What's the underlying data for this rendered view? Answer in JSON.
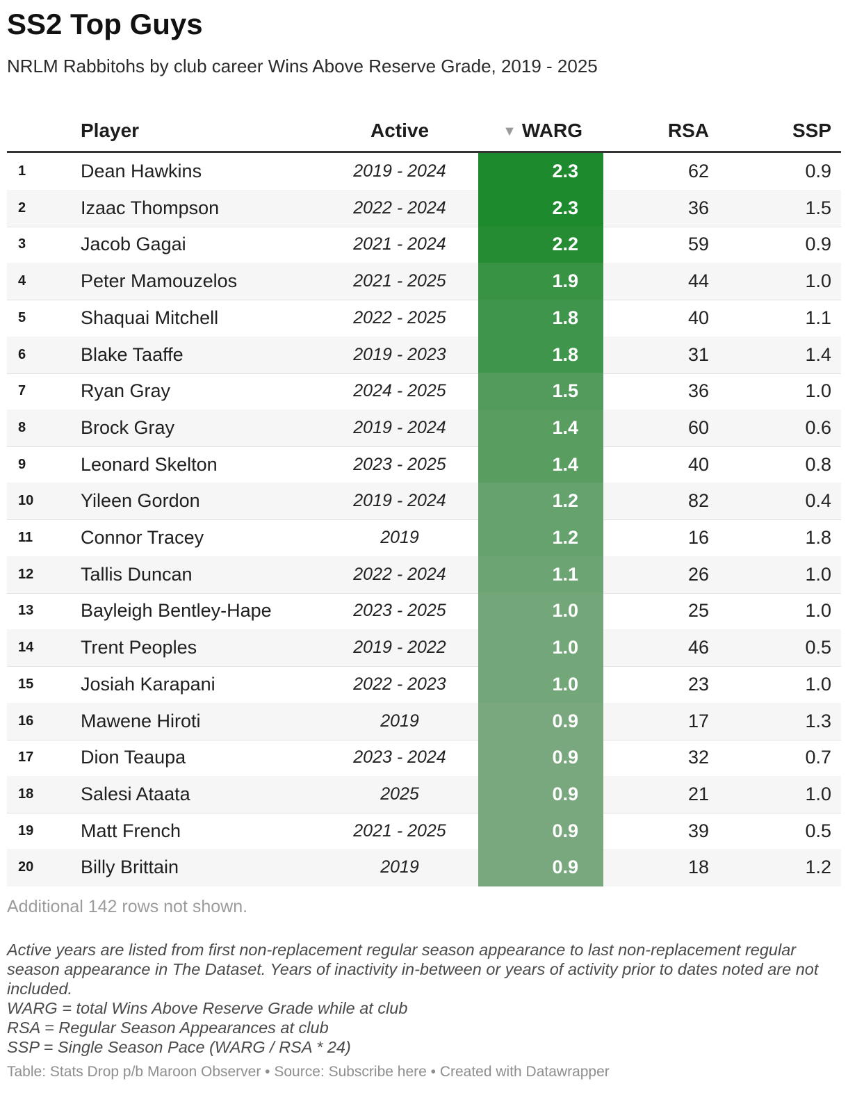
{
  "title": "SS2 Top Guys",
  "subtitle": "NRLM Rabbitohs by club career Wins Above Reserve Grade, 2019 - 2025",
  "colors": {
    "warg_high": "#1e8a2e",
    "warg_low": "#7aa87e",
    "row_alt": "#f6f6f6"
  },
  "chart_data": {
    "type": "table",
    "columns": [
      "",
      "Player",
      "Active",
      "WARG",
      "RSA",
      "SSP"
    ],
    "sort_indicator": "▼",
    "sorted_column": "WARG",
    "rows": [
      {
        "rank": "1",
        "player": "Dean Hawkins",
        "active": "2019 - 2024",
        "warg": "2.3",
        "rsa": "62",
        "ssp": "0.9"
      },
      {
        "rank": "2",
        "player": "Izaac Thompson",
        "active": "2022 - 2024",
        "warg": "2.3",
        "rsa": "36",
        "ssp": "1.5"
      },
      {
        "rank": "3",
        "player": "Jacob Gagai",
        "active": "2021 - 2024",
        "warg": "2.2",
        "rsa": "59",
        "ssp": "0.9"
      },
      {
        "rank": "4",
        "player": "Peter Mamouzelos",
        "active": "2021 - 2025",
        "warg": "1.9",
        "rsa": "44",
        "ssp": "1.0"
      },
      {
        "rank": "5",
        "player": "Shaquai Mitchell",
        "active": "2022 - 2025",
        "warg": "1.8",
        "rsa": "40",
        "ssp": "1.1"
      },
      {
        "rank": "6",
        "player": "Blake Taaffe",
        "active": "2019 - 2023",
        "warg": "1.8",
        "rsa": "31",
        "ssp": "1.4"
      },
      {
        "rank": "7",
        "player": "Ryan Gray",
        "active": "2024 - 2025",
        "warg": "1.5",
        "rsa": "36",
        "ssp": "1.0"
      },
      {
        "rank": "8",
        "player": "Brock Gray",
        "active": "2019 - 2024",
        "warg": "1.4",
        "rsa": "60",
        "ssp": "0.6"
      },
      {
        "rank": "9",
        "player": "Leonard Skelton",
        "active": "2023 - 2025",
        "warg": "1.4",
        "rsa": "40",
        "ssp": "0.8"
      },
      {
        "rank": "10",
        "player": "Yileen Gordon",
        "active": "2019 - 2024",
        "warg": "1.2",
        "rsa": "82",
        "ssp": "0.4"
      },
      {
        "rank": "11",
        "player": "Connor Tracey",
        "active": "2019",
        "warg": "1.2",
        "rsa": "16",
        "ssp": "1.8"
      },
      {
        "rank": "12",
        "player": "Tallis Duncan",
        "active": "2022 - 2024",
        "warg": "1.1",
        "rsa": "26",
        "ssp": "1.0"
      },
      {
        "rank": "13",
        "player": "Bayleigh Bentley-Hape",
        "active": "2023 - 2025",
        "warg": "1.0",
        "rsa": "25",
        "ssp": "1.0"
      },
      {
        "rank": "14",
        "player": "Trent Peoples",
        "active": "2019 - 2022",
        "warg": "1.0",
        "rsa": "46",
        "ssp": "0.5"
      },
      {
        "rank": "15",
        "player": "Josiah Karapani",
        "active": "2022 - 2023",
        "warg": "1.0",
        "rsa": "23",
        "ssp": "1.0"
      },
      {
        "rank": "16",
        "player": "Mawene Hiroti",
        "active": "2019",
        "warg": "0.9",
        "rsa": "17",
        "ssp": "1.3"
      },
      {
        "rank": "17",
        "player": "Dion Teaupa",
        "active": "2023 - 2024",
        "warg": "0.9",
        "rsa": "32",
        "ssp": "0.7"
      },
      {
        "rank": "18",
        "player": "Salesi Ataata",
        "active": "2025",
        "warg": "0.9",
        "rsa": "21",
        "ssp": "1.0"
      },
      {
        "rank": "19",
        "player": "Matt French",
        "active": "2021 - 2025",
        "warg": "0.9",
        "rsa": "39",
        "ssp": "0.5"
      },
      {
        "rank": "20",
        "player": "Billy Brittain",
        "active": "2019",
        "warg": "0.9",
        "rsa": "18",
        "ssp": "1.2"
      }
    ]
  },
  "more_rows": "Additional 142 rows not shown.",
  "notes": [
    "Active years are listed from first non-replacement regular season appearance to last non-replacement regular season appearance in The Dataset. Years of inactivity in-between or years of activity prior to dates noted are not included.",
    "WARG = total Wins Above Reserve Grade while at club",
    "RSA = Regular Season Appearances at club",
    "SSP = Single Season Pace (WARG / RSA * 24)"
  ],
  "footer": "Table: Stats Drop p/b Maroon Observer • Source: Subscribe here • Created with Datawrapper"
}
